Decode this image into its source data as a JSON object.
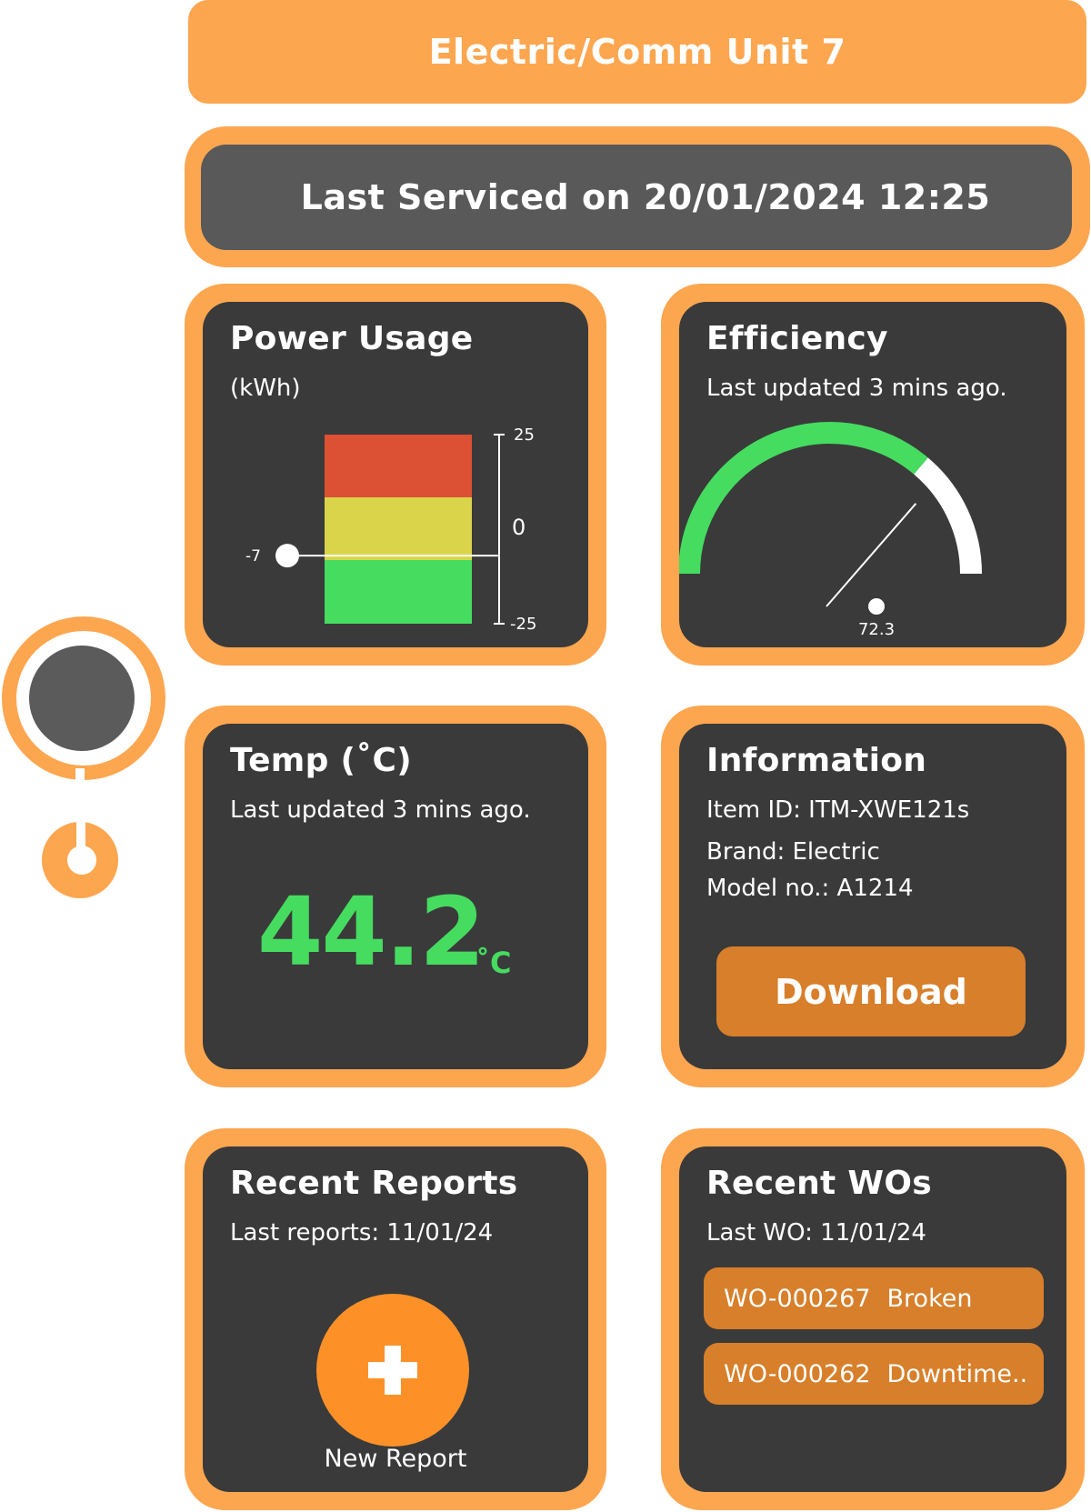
{
  "header": {
    "title": "Electric/Comm Unit 7"
  },
  "service": {
    "text": "Last Serviced on 20/01/2024 12:25"
  },
  "power": {
    "title": "Power Usage",
    "unit": "(kWh)",
    "value": -7,
    "value_label": "-7",
    "ticks": {
      "top": "25",
      "mid": "0",
      "bottom": "-25"
    },
    "range": [
      -25,
      25
    ],
    "colors": {
      "red": "#dc5034",
      "yellow": "#dad44a",
      "green": "#46dc60"
    }
  },
  "efficiency": {
    "title": "Efficiency",
    "updated": "Last updated 3 mins ago.",
    "value": 72.3,
    "value_label": "72.3",
    "colors": {
      "arc": "#46dc60",
      "rest": "#ffffff"
    }
  },
  "temp": {
    "title": "Temp (˚C)",
    "updated": "Last updated 3 mins ago.",
    "value": "44.2",
    "unit": "˚C",
    "color": "#46dc60"
  },
  "info": {
    "title": "Information",
    "item_id": "Item ID: ITM-XWE121s",
    "brand": "Brand: Electric",
    "model": "Model no.: A1214",
    "download_label": "Download"
  },
  "reports": {
    "title": "Recent Reports",
    "last": "Last reports: 11/01/24",
    "new_label": "New Report",
    "icon": "plus-icon"
  },
  "wos": {
    "title": "Recent WOs",
    "last": "Last WO: 11/01/24",
    "items": [
      {
        "id": "WO-000267",
        "status": "Broken"
      },
      {
        "id": "WO-000262",
        "status": "Downtime.."
      }
    ]
  },
  "theme": {
    "accent": "#fda650",
    "card": "#3a3a3a",
    "button": "#d77f2b",
    "banner": "#595959"
  }
}
